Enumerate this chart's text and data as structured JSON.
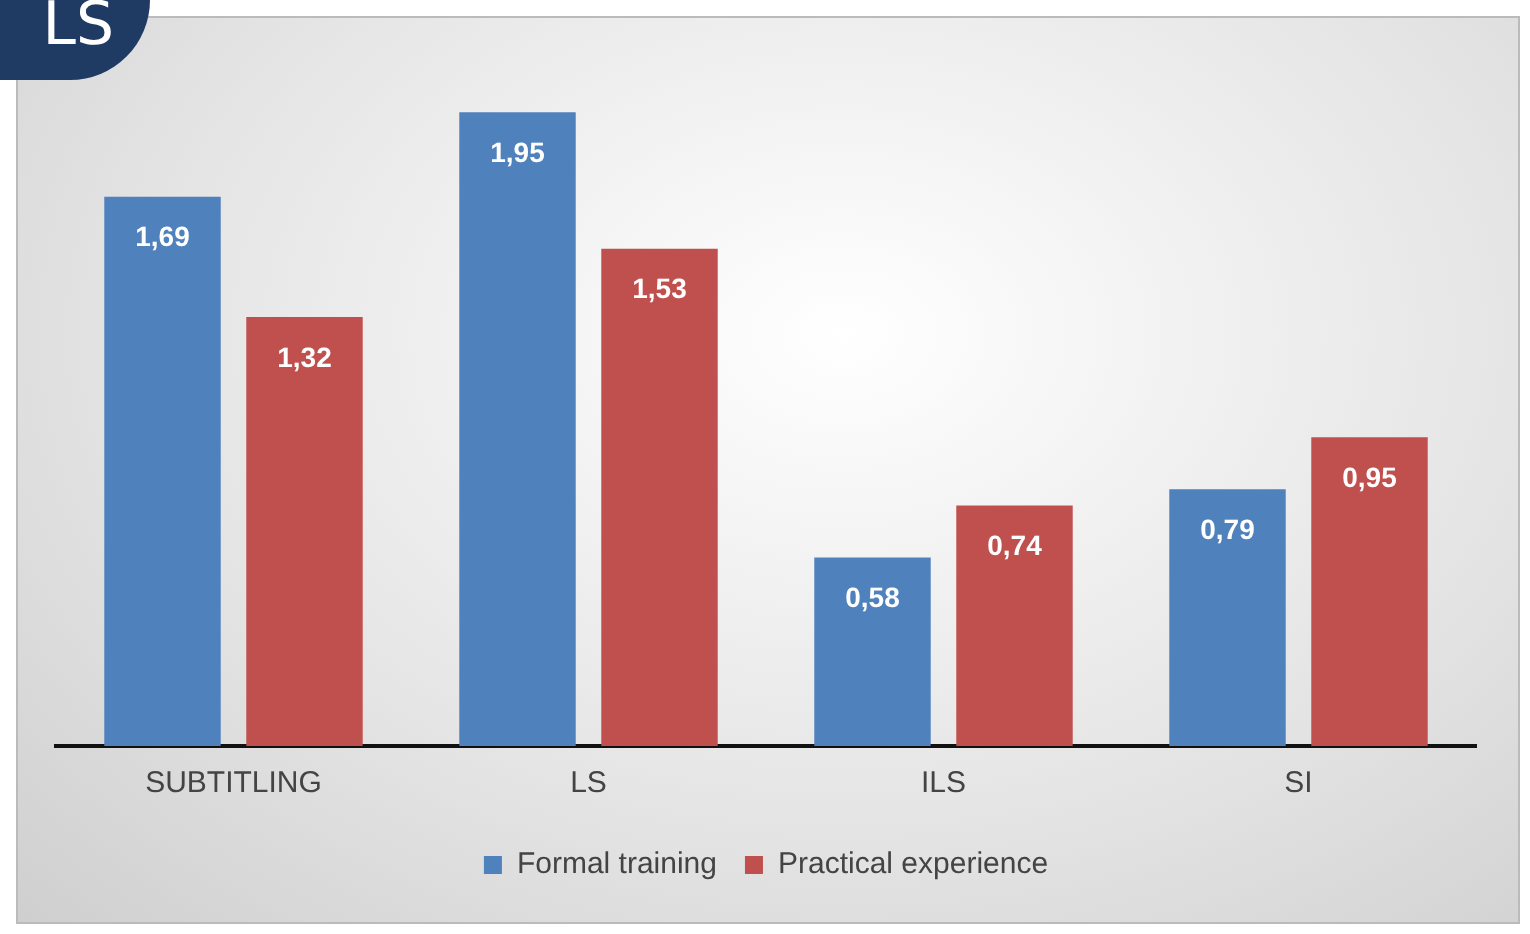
{
  "chart_data": {
    "type": "bar",
    "title": "LS",
    "categories": [
      "SUBTITLING",
      "LS",
      "ILS",
      "SI"
    ],
    "series": [
      {
        "name": "Formal training",
        "color": "#4f81bd",
        "values": [
          1.69,
          1.95,
          0.58,
          0.79
        ],
        "value_labels": [
          "1,69",
          "1,95",
          "0,58",
          "0,79"
        ]
      },
      {
        "name": "Practical experience",
        "color": "#c0504d",
        "values": [
          1.32,
          1.53,
          0.74,
          0.95
        ],
        "value_labels": [
          "1,32",
          "1,53",
          "0,74",
          "0,95"
        ]
      }
    ],
    "legend": "bottom",
    "grid": false,
    "tick_labels": "x"
  }
}
